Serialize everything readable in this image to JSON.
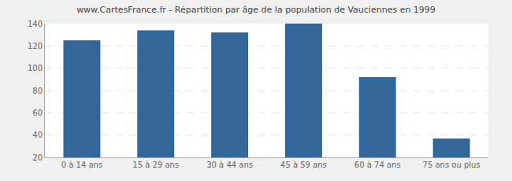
{
  "chart_data": {
    "type": "bar",
    "title": "www.CartesFrance.fr - Répartition par âge de la population de Vauciennes en 1999",
    "categories": [
      "0 à 14 ans",
      "15 à 29 ans",
      "30 à 44 ans",
      "45 à 59 ans",
      "60 à 74 ans",
      "75 ans ou plus"
    ],
    "values": [
      125,
      134,
      132,
      140,
      92,
      37
    ],
    "color": "#336699",
    "ylim": [
      20,
      140
    ],
    "yticks": [
      20,
      40,
      60,
      80,
      100,
      120,
      140
    ],
    "grid": true
  }
}
